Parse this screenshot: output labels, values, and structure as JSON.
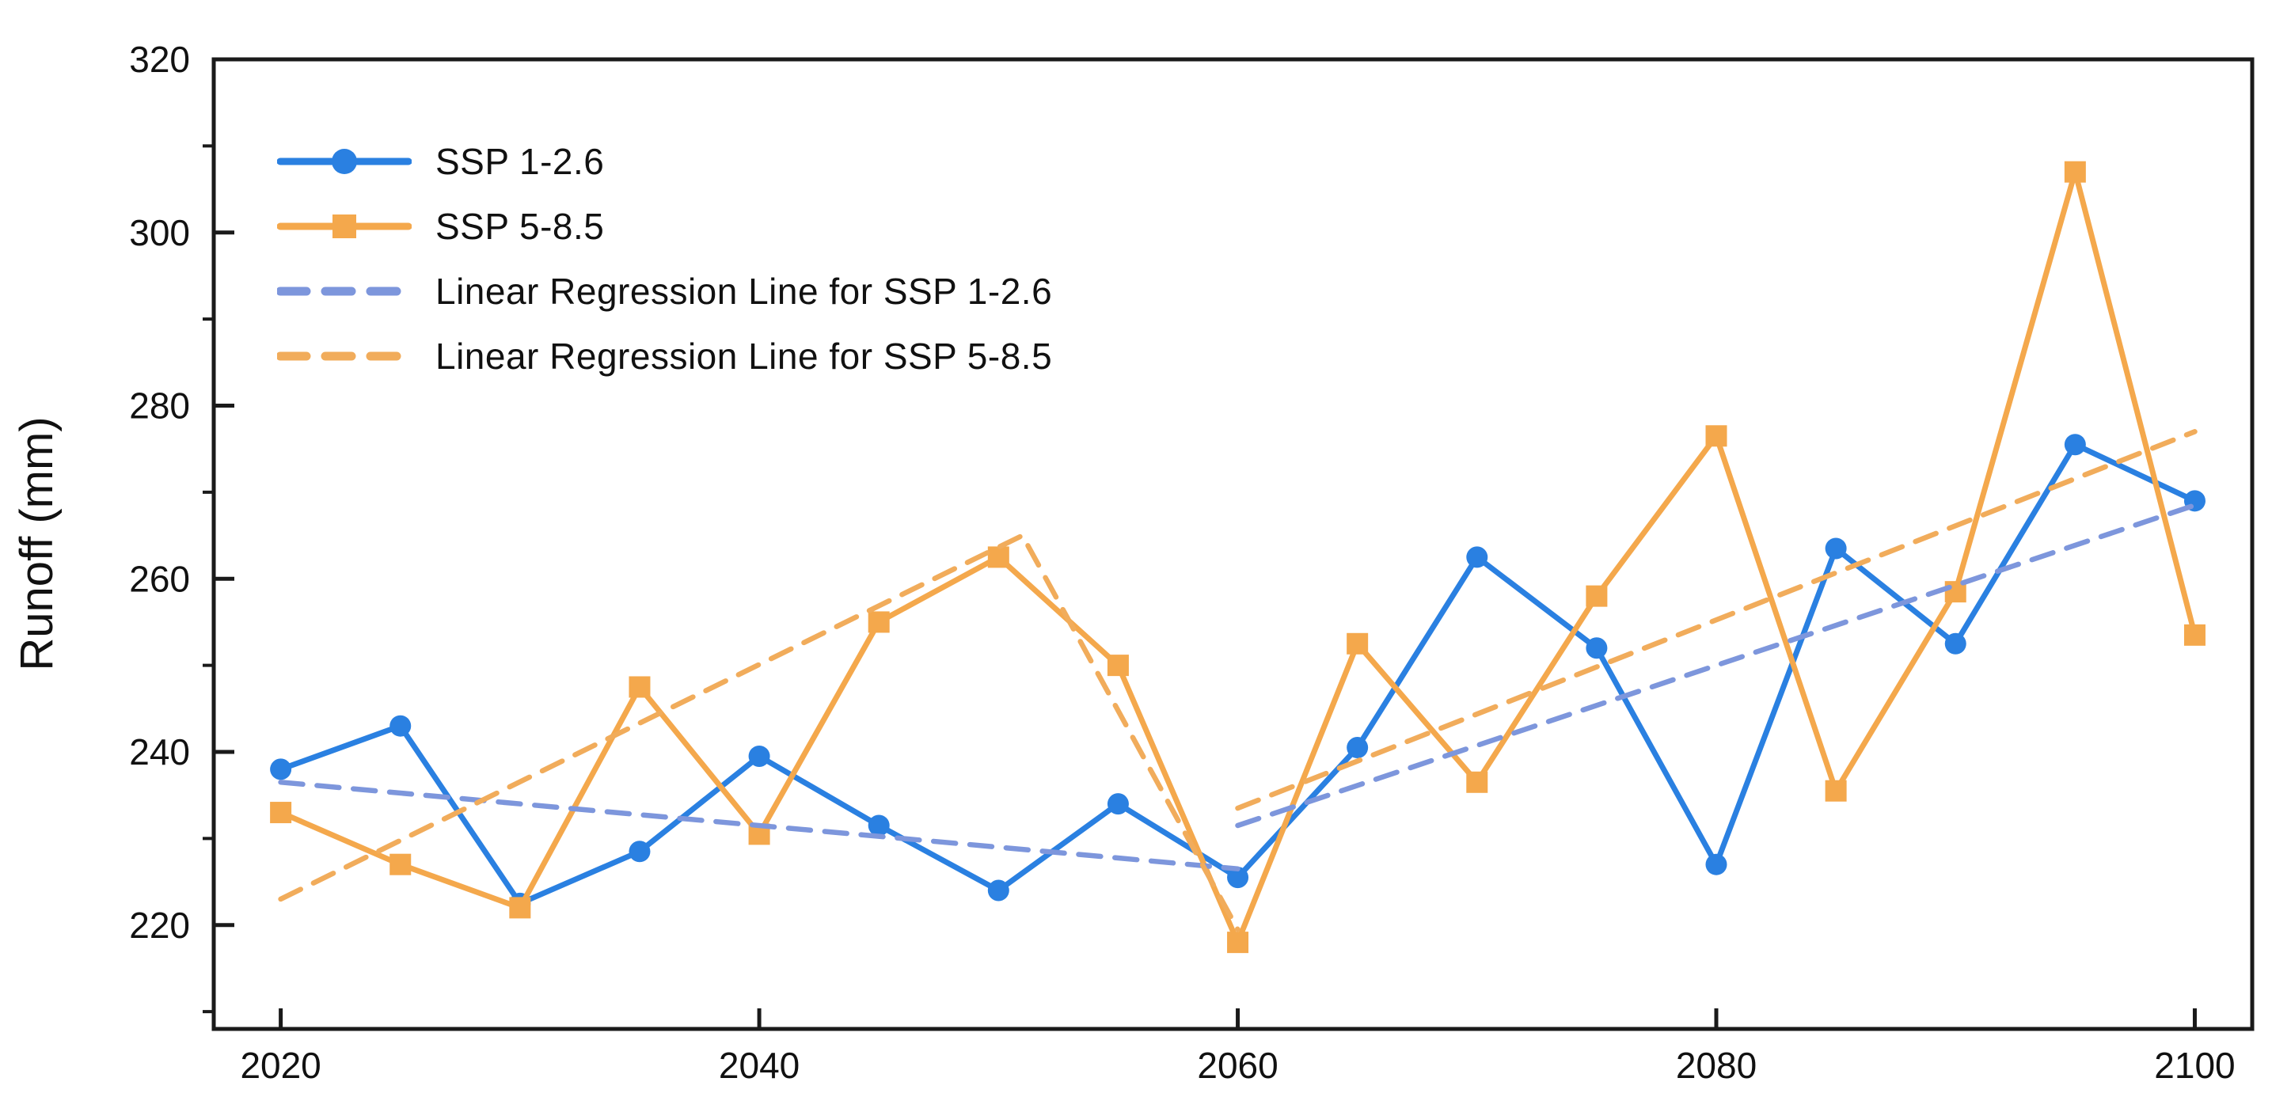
{
  "page": {
    "background": "#ffffff",
    "text_color": "#111111",
    "axis_color": "#1a1a1a"
  },
  "chart_data": {
    "type": "line",
    "title": "",
    "xlabel": "",
    "ylabel": "Runoff (mm)",
    "xlim": [
      2017.2,
      2102.4
    ],
    "ylim": [
      208,
      320
    ],
    "x_major_ticks": [
      2020,
      2040,
      2060,
      2080,
      2100
    ],
    "y_major_ticks": [
      220,
      240,
      260,
      280,
      300,
      320
    ],
    "y_minor_ticks": [
      210,
      230,
      250,
      270,
      290,
      310
    ],
    "grid": false,
    "legend_position": "upper-left",
    "x": [
      2020,
      2025,
      2030,
      2035,
      2040,
      2045,
      2050,
      2055,
      2060,
      2065,
      2070,
      2075,
      2080,
      2085,
      2090,
      2095,
      2100
    ],
    "series": [
      {
        "id": "ssp-1-2-6",
        "name": "SSP 1-2.6",
        "kind": "data",
        "color": "#2A80E1",
        "marker": "circle",
        "line_style": "solid",
        "values": [
          238,
          243,
          222.5,
          228.5,
          239.5,
          231.5,
          224,
          234,
          225.5,
          240.5,
          262.5,
          252,
          227,
          263.5,
          252.5,
          275.5,
          269
        ]
      },
      {
        "id": "ssp-5-8-5",
        "name": "SSP 5-8.5",
        "kind": "data",
        "color": "#F4A84C",
        "marker": "square",
        "line_style": "solid",
        "values": [
          233,
          227,
          222,
          247.5,
          230.5,
          255,
          262.5,
          250,
          218,
          252.5,
          236.5,
          258,
          276.5,
          235.5,
          258.5,
          307,
          253.5
        ]
      },
      {
        "id": "linreg-ssp-1-2-6",
        "name": "Linear Regression Line for SSP 1-2.6",
        "kind": "regression",
        "color": "#7D96DC",
        "marker": "none",
        "line_style": "dashed",
        "segments": [
          [
            [
              2020,
              236.5
            ],
            [
              2060,
              226.5
            ]
          ],
          [
            [
              2060,
              231.5
            ],
            [
              2100,
              268.5
            ]
          ]
        ]
      },
      {
        "id": "linreg-ssp-5-8-5",
        "name": "Linear Regression Line for SSP 5-8.5",
        "kind": "regression",
        "color": "#F1AC5B",
        "marker": "none",
        "line_style": "dashed",
        "segments": [
          [
            [
              2020,
              223
            ],
            [
              2051,
              265
            ],
            [
              2060,
              219.5
            ]
          ],
          [
            [
              2060,
              233.5
            ],
            [
              2100,
              277
            ]
          ]
        ]
      }
    ]
  }
}
